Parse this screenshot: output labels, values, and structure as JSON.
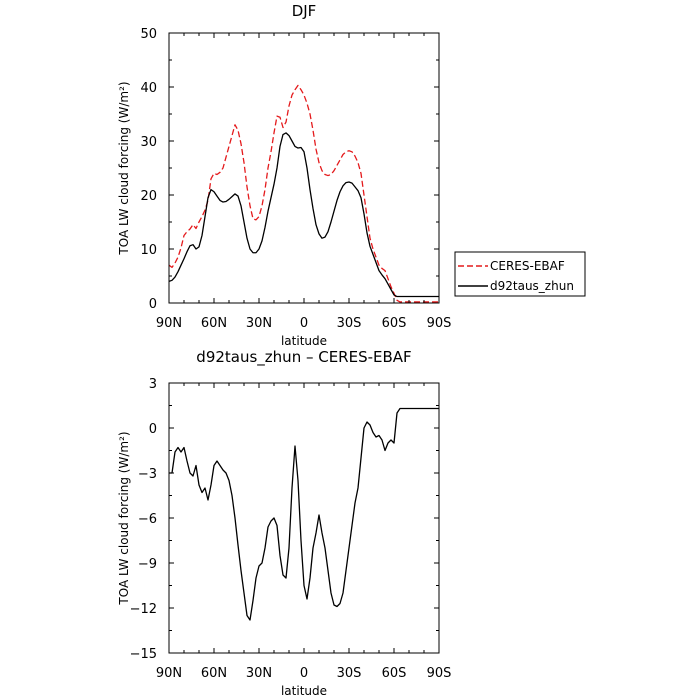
{
  "chart_data": [
    {
      "type": "line",
      "title": "DJF",
      "xlabel": "latitude",
      "ylabel": "TOA LW cloud forcing (W/m²)",
      "xlim": [
        90,
        -90
      ],
      "ylim": [
        0,
        50
      ],
      "x_ticks": [
        90,
        60,
        30,
        0,
        -30,
        -60,
        -90
      ],
      "x_tick_labels": [
        "90N",
        "60N",
        "30N",
        "0",
        "30S",
        "60S",
        "90S"
      ],
      "y_ticks": [
        0,
        10,
        20,
        30,
        40,
        50
      ],
      "y_tick_labels": [
        "0",
        "10",
        "20",
        "30",
        "40",
        "50"
      ],
      "legend_position": "right",
      "series": [
        {
          "name": "CERES-EBAF",
          "color": "#e41a1c",
          "dash": true,
          "x": [
            90,
            88,
            86,
            84,
            82,
            80,
            78,
            76,
            74,
            72,
            70,
            68,
            66,
            64,
            62,
            60,
            58,
            56,
            54,
            52,
            50,
            48,
            46,
            44,
            42,
            40,
            38,
            36,
            34,
            32,
            30,
            28,
            26,
            24,
            22,
            20,
            18,
            16,
            14,
            12,
            10,
            8,
            6,
            4,
            2,
            0,
            -2,
            -4,
            -6,
            -8,
            -10,
            -12,
            -14,
            -16,
            -18,
            -20,
            -22,
            -24,
            -26,
            -28,
            -30,
            -32,
            -34,
            -36,
            -38,
            -40,
            -42,
            -44,
            -46,
            -48,
            -50,
            -52,
            -54,
            -56,
            -58,
            -60,
            -62,
            -64,
            -66,
            -68,
            -70,
            -72,
            -74,
            -76,
            -78,
            -80,
            -82,
            -84,
            -86,
            -88,
            -90
          ],
          "values": [
            7.0,
            6.6,
            7.4,
            8.5,
            10.2,
            12.5,
            13.2,
            13.7,
            14.5,
            13.8,
            15.0,
            16.0,
            17.2,
            19.0,
            23.0,
            24.0,
            23.8,
            24.2,
            25.0,
            27.0,
            29.0,
            31.0,
            33.0,
            32.0,
            29.5,
            26.0,
            21.5,
            18.0,
            15.6,
            15.4,
            16.0,
            18.0,
            21.0,
            25.0,
            28.0,
            31.5,
            34.6,
            34.4,
            32.5,
            33.5,
            36.5,
            38.5,
            39.5,
            40.3,
            39.5,
            38.5,
            37.0,
            35.0,
            32.0,
            28.5,
            26.0,
            24.5,
            23.8,
            23.6,
            23.8,
            24.5,
            25.5,
            26.5,
            27.5,
            28.0,
            28.2,
            28.0,
            27.2,
            26.0,
            24.0,
            20.0,
            16.0,
            12.0,
            10.0,
            8.5,
            7.0,
            6.4,
            6.0,
            4.5,
            3.0,
            1.8,
            0.5,
            0.2,
            0.2,
            0.2,
            0.2,
            0.2,
            0.2,
            0.2,
            0.2,
            0.2,
            0.2,
            0.2,
            0.2,
            0.2,
            0.2
          ]
        },
        {
          "name": "d92taus_zhun",
          "color": "#000000",
          "dash": false,
          "x": [
            90,
            88,
            86,
            84,
            82,
            80,
            78,
            76,
            74,
            72,
            70,
            68,
            66,
            64,
            62,
            60,
            58,
            56,
            54,
            52,
            50,
            48,
            46,
            44,
            42,
            40,
            38,
            36,
            34,
            32,
            30,
            28,
            26,
            24,
            22,
            20,
            18,
            16,
            14,
            12,
            10,
            8,
            6,
            4,
            2,
            0,
            -2,
            -4,
            -6,
            -8,
            -10,
            -12,
            -14,
            -16,
            -18,
            -20,
            -22,
            -24,
            -26,
            -28,
            -30,
            -32,
            -34,
            -36,
            -38,
            -40,
            -42,
            -44,
            -46,
            -48,
            -50,
            -52,
            -54,
            -56,
            -58,
            -60,
            -62,
            -64,
            -66,
            -68,
            -70,
            -72,
            -74,
            -76,
            -78,
            -80,
            -82,
            -84,
            -86,
            -88,
            -90
          ],
          "values": [
            4.0,
            4.2,
            4.8,
            5.8,
            7.0,
            8.2,
            9.5,
            10.6,
            10.8,
            10.0,
            10.4,
            12.5,
            16.0,
            19.5,
            21.0,
            20.6,
            19.8,
            19.0,
            18.7,
            18.8,
            19.2,
            19.7,
            20.2,
            19.8,
            18.0,
            15.0,
            12.0,
            10.0,
            9.3,
            9.3,
            10.0,
            11.5,
            14.0,
            17.0,
            19.5,
            22.0,
            25.0,
            29.0,
            31.2,
            31.5,
            31.0,
            30.0,
            29.0,
            28.7,
            28.8,
            28.0,
            25.0,
            21.0,
            17.5,
            14.5,
            12.8,
            12.0,
            12.2,
            13.2,
            15.0,
            17.0,
            19.0,
            20.6,
            21.7,
            22.3,
            22.4,
            22.2,
            21.5,
            20.8,
            19.5,
            16.5,
            13.0,
            10.5,
            9.0,
            7.5,
            6.0,
            5.2,
            4.5,
            3.5,
            2.5,
            1.5,
            1.2,
            1.2,
            1.2,
            1.2,
            1.2,
            1.2,
            1.2,
            1.2,
            1.2,
            1.2,
            1.2,
            1.2,
            1.2,
            1.2,
            1.2
          ]
        }
      ]
    },
    {
      "type": "line",
      "title": "d92taus_zhun – CERES-EBAF",
      "xlabel": "latitude",
      "ylabel": "TOA LW cloud forcing (W/m²)",
      "xlim": [
        90,
        -90
      ],
      "ylim": [
        -15,
        3
      ],
      "x_ticks": [
        90,
        60,
        30,
        0,
        -30,
        -60,
        -90
      ],
      "x_tick_labels": [
        "90N",
        "60N",
        "30N",
        "0",
        "30S",
        "60S",
        "90S"
      ],
      "y_ticks": [
        3,
        0,
        -3,
        -6,
        -9,
        -12,
        -15
      ],
      "y_tick_labels": [
        "3",
        "0",
        "−3",
        "−6",
        "−9",
        "−12",
        "−15"
      ],
      "series": [
        {
          "color": "#000000",
          "dash": false,
          "x": [
            90,
            88,
            86,
            84,
            82,
            80,
            78,
            76,
            74,
            72,
            70,
            68,
            66,
            64,
            62,
            60,
            58,
            56,
            54,
            52,
            50,
            48,
            46,
            44,
            42,
            40,
            38,
            36,
            34,
            32,
            30,
            28,
            26,
            24,
            22,
            20,
            18,
            16,
            14,
            12,
            10,
            8,
            6,
            4,
            2,
            0,
            -2,
            -4,
            -6,
            -8,
            -10,
            -12,
            -14,
            -16,
            -18,
            -20,
            -22,
            -24,
            -26,
            -28,
            -30,
            -32,
            -34,
            -36,
            -38,
            -40,
            -42,
            -44,
            -46,
            -48,
            -50,
            -52,
            -54,
            -56,
            -58,
            -60,
            -62,
            -64,
            -66,
            -68,
            -70,
            -72,
            -74,
            -76,
            -78,
            -80,
            -82,
            -84,
            -86,
            -88,
            -90
          ],
          "values": [
            -3.0,
            -3.0,
            -1.6,
            -1.3,
            -1.6,
            -1.3,
            -2.2,
            -3.0,
            -3.2,
            -2.5,
            -3.8,
            -4.3,
            -4.0,
            -4.8,
            -3.8,
            -2.5,
            -2.2,
            -2.5,
            -2.8,
            -3.0,
            -3.5,
            -4.5,
            -6.0,
            -7.8,
            -9.5,
            -11.0,
            -12.5,
            -12.8,
            -11.5,
            -10.0,
            -9.2,
            -9.0,
            -8.0,
            -6.6,
            -6.2,
            -6.0,
            -6.5,
            -8.5,
            -9.8,
            -10.0,
            -8.0,
            -4.0,
            -1.2,
            -3.5,
            -7.5,
            -10.5,
            -11.4,
            -10.0,
            -8.0,
            -7.0,
            -5.8,
            -7.0,
            -8.0,
            -9.5,
            -11.0,
            -11.8,
            -11.9,
            -11.7,
            -11.0,
            -9.5,
            -8.0,
            -6.5,
            -5.0,
            -4.0,
            -2.0,
            0.0,
            0.4,
            0.2,
            -0.3,
            -0.6,
            -0.5,
            -0.8,
            -1.5,
            -1.0,
            -0.8,
            -1.0,
            1.0,
            1.3,
            1.3,
            1.3,
            1.3,
            1.3,
            1.3,
            1.3,
            1.3,
            1.3,
            1.3,
            1.3,
            1.3,
            1.3,
            1.3
          ]
        }
      ]
    }
  ]
}
